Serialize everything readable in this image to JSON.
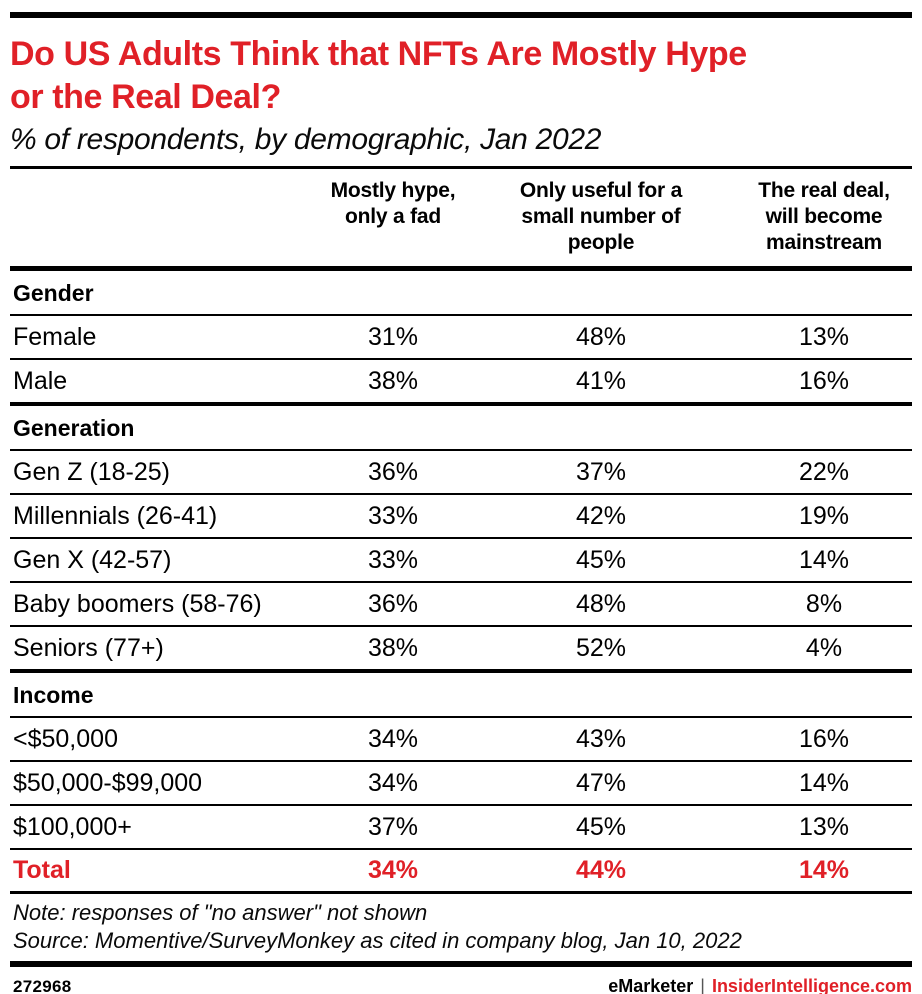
{
  "colors": {
    "accent_red": "#e02027",
    "text": "#000000",
    "rule": "#000000"
  },
  "ui": {
    "title_line1": "Do US Adults Think that NFTs Are Mostly Hype",
    "title_line2": "or the Real Deal?",
    "subtitle": "% of respondents, by demographic, Jan 2022",
    "columns": [
      {
        "lines": [
          "Mostly hype,",
          "only a fad"
        ]
      },
      {
        "lines": [
          "Only useful for a",
          "small number of",
          "people"
        ]
      },
      {
        "lines": [
          "The real deal,",
          "will become",
          "mainstream"
        ]
      }
    ],
    "sections": [
      {
        "title": "Gender",
        "rows": [
          {
            "label": "Female",
            "values": [
              "31%",
              "48%",
              "13%"
            ]
          },
          {
            "label": "Male",
            "values": [
              "38%",
              "41%",
              "16%"
            ]
          }
        ]
      },
      {
        "title": "Generation",
        "rows": [
          {
            "label": "Gen Z (18-25)",
            "values": [
              "36%",
              "37%",
              "22%"
            ]
          },
          {
            "label": "Millennials (26-41)",
            "values": [
              "33%",
              "42%",
              "19%"
            ]
          },
          {
            "label": "Gen X (42-57)",
            "values": [
              "33%",
              "45%",
              "14%"
            ]
          },
          {
            "label": "Baby boomers (58-76)",
            "values": [
              "36%",
              "48%",
              "8%"
            ]
          },
          {
            "label": "Seniors (77+)",
            "values": [
              "38%",
              "52%",
              "4%"
            ]
          }
        ]
      },
      {
        "title": "Income",
        "rows": [
          {
            "label": "<$50,000",
            "values": [
              "34%",
              "43%",
              "16%"
            ]
          },
          {
            "label": "$50,000-$99,000",
            "values": [
              "34%",
              "47%",
              "14%"
            ]
          },
          {
            "label": "$100,000+",
            "values": [
              "37%",
              "45%",
              "13%"
            ]
          }
        ]
      }
    ],
    "total": {
      "label": "Total",
      "values": [
        "34%",
        "44%",
        "14%"
      ]
    },
    "note": "Note: responses of \"no answer\" not shown",
    "source": "Source: Momentive/SurveyMonkey as cited in company blog, Jan 10, 2022",
    "footer": {
      "chart_id": "272968",
      "brand": "eMarketer",
      "pipe": "|",
      "site": "InsiderIntelligence.com"
    }
  },
  "chart_data": {
    "type": "table",
    "title": "Do US Adults Think that NFTs Are Mostly Hype or the Real Deal?",
    "subtitle": "% of respondents, by demographic, Jan 2022",
    "units": "%",
    "columns": [
      "Mostly hype, only a fad",
      "Only useful for a small number of people",
      "The real deal, will become mainstream"
    ],
    "groups": [
      {
        "group": "Gender",
        "rows": [
          {
            "label": "Female",
            "values": [
              31,
              48,
              13
            ]
          },
          {
            "label": "Male",
            "values": [
              38,
              41,
              16
            ]
          }
        ]
      },
      {
        "group": "Generation",
        "rows": [
          {
            "label": "Gen Z (18-25)",
            "values": [
              36,
              37,
              22
            ]
          },
          {
            "label": "Millennials (26-41)",
            "values": [
              33,
              42,
              19
            ]
          },
          {
            "label": "Gen X (42-57)",
            "values": [
              33,
              45,
              14
            ]
          },
          {
            "label": "Baby boomers (58-76)",
            "values": [
              36,
              48,
              8
            ]
          },
          {
            "label": "Seniors (77+)",
            "values": [
              38,
              52,
              4
            ]
          }
        ]
      },
      {
        "group": "Income",
        "rows": [
          {
            "label": "<$50,000",
            "values": [
              34,
              43,
              16
            ]
          },
          {
            "label": "$50,000-$99,000",
            "values": [
              34,
              47,
              14
            ]
          },
          {
            "label": "$100,000+",
            "values": [
              37,
              45,
              13
            ]
          }
        ]
      }
    ],
    "total": {
      "label": "Total",
      "values": [
        34,
        44,
        14
      ]
    },
    "note": "Note: responses of \"no answer\" not shown",
    "source": "Source: Momentive/SurveyMonkey as cited in company blog, Jan 10, 2022"
  }
}
